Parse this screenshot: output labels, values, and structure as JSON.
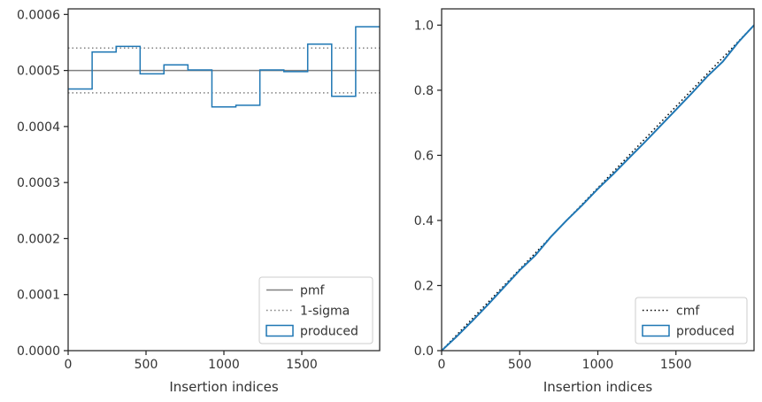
{
  "chart_data": [
    {
      "type": "line",
      "panel": "left",
      "xlabel": "Insertion indices",
      "ylabel": "",
      "xlim": [
        0,
        2000
      ],
      "ylim": [
        0,
        0.00061
      ],
      "xticks": [
        0,
        500,
        1000,
        1500
      ],
      "yticks": [
        0,
        0.0001,
        0.0002,
        0.0003,
        0.0004,
        0.0005,
        0.0006
      ],
      "ytick_labels": [
        "0.0000",
        "0.0001",
        "0.0002",
        "0.0003",
        "0.0004",
        "0.0005",
        "0.0006"
      ],
      "xtick_labels": [
        "0",
        "500",
        "1000",
        "1500"
      ],
      "legend": "lower-right",
      "legend_entries": [
        "pmf",
        "1-sigma",
        "produced"
      ],
      "pmf": {
        "name": "pmf",
        "value": 0.0005,
        "color": "#808080"
      },
      "sigma": {
        "name": "1-sigma",
        "values": [
          0.00046,
          0.00054
        ],
        "color": "#808080"
      },
      "series": [
        {
          "name": "produced",
          "color": "#1f77b4",
          "bin_edges": [
            0,
            154,
            308,
            462,
            615,
            769,
            923,
            1077,
            1231,
            1385,
            1538,
            1692,
            1846,
            2000
          ],
          "values": [
            0.000467,
            0.000533,
            0.000543,
            0.000494,
            0.00051,
            0.000501,
            0.000435,
            0.000438,
            0.000501,
            0.000498,
            0.000547,
            0.000454,
            0.000578
          ]
        }
      ]
    },
    {
      "type": "line",
      "panel": "right",
      "xlabel": "Insertion indices",
      "ylabel": "",
      "xlim": [
        0,
        2000
      ],
      "ylim": [
        0,
        1.05
      ],
      "xticks": [
        0,
        500,
        1000,
        1500
      ],
      "yticks": [
        0,
        0.2,
        0.4,
        0.6,
        0.8,
        1.0
      ],
      "ytick_labels": [
        "0.0",
        "0.2",
        "0.4",
        "0.6",
        "0.8",
        "1.0"
      ],
      "xtick_labels": [
        "0",
        "500",
        "1000",
        "1500"
      ],
      "legend": "lower-right",
      "legend_entries": [
        "cmf",
        "produced"
      ],
      "cmf": {
        "name": "cmf",
        "x": [
          0,
          2000
        ],
        "y": [
          0,
          1.0
        ],
        "color": "#000000"
      },
      "series": [
        {
          "name": "produced",
          "color": "#1f77b4",
          "x": [
            0,
            100,
            200,
            300,
            400,
            500,
            600,
            700,
            800,
            900,
            1000,
            1100,
            1200,
            1300,
            1400,
            1500,
            1600,
            1700,
            1800,
            1900,
            2000
          ],
          "y": [
            0,
            0.045,
            0.093,
            0.143,
            0.195,
            0.247,
            0.293,
            0.35,
            0.4,
            0.447,
            0.497,
            0.543,
            0.592,
            0.64,
            0.69,
            0.74,
            0.79,
            0.842,
            0.888,
            0.948,
            1.0
          ]
        }
      ]
    }
  ]
}
